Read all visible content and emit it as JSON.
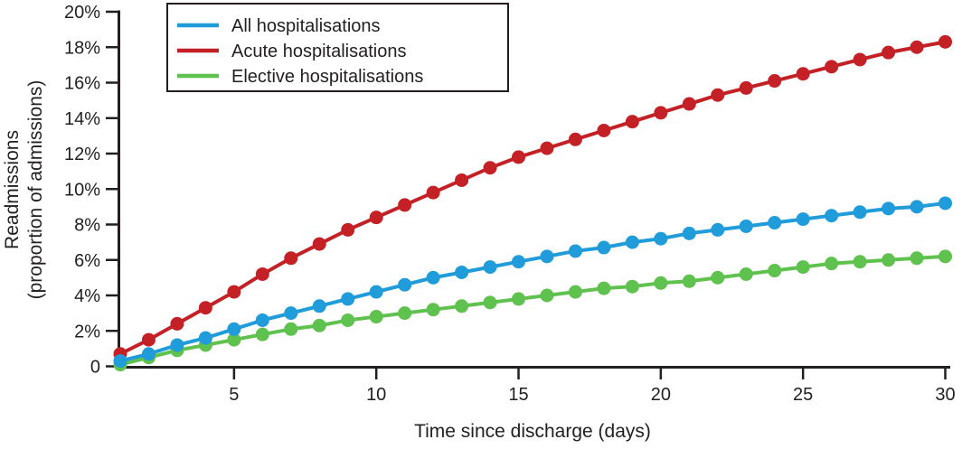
{
  "chart_data": {
    "type": "line",
    "marker": "circle",
    "grid": false,
    "legend_position": "top-left",
    "xlabel": "Time since discharge (days)",
    "ylabel": "Readmissions (proportion of admissions)",
    "y_axis_title_lines": [
      "Readmissions",
      "(proportion of admissions)"
    ],
    "xlim": [
      1,
      30
    ],
    "ylim": [
      0,
      20
    ],
    "x_ticks": [
      5,
      10,
      15,
      20,
      25,
      30
    ],
    "y_ticks": [
      {
        "value": 0,
        "label": "0"
      },
      {
        "value": 2,
        "label": "2%"
      },
      {
        "value": 4,
        "label": "4%"
      },
      {
        "value": 6,
        "label": "6%"
      },
      {
        "value": 8,
        "label": "8%"
      },
      {
        "value": 10,
        "label": "10%"
      },
      {
        "value": 12,
        "label": "12%"
      },
      {
        "value": 14,
        "label": "14%"
      },
      {
        "value": 16,
        "label": "16%"
      },
      {
        "value": 18,
        "label": "18%"
      },
      {
        "value": 20,
        "label": "20%"
      }
    ],
    "x": [
      1,
      2,
      3,
      4,
      5,
      6,
      7,
      8,
      9,
      10,
      11,
      12,
      13,
      14,
      15,
      16,
      17,
      18,
      19,
      20,
      21,
      22,
      23,
      24,
      25,
      26,
      27,
      28,
      29,
      30
    ],
    "series": [
      {
        "name": "All hospitalisations",
        "color": "#1f9cd9",
        "values": [
          0.3,
          0.7,
          1.2,
          1.6,
          2.1,
          2.6,
          3.0,
          3.4,
          3.8,
          4.2,
          4.6,
          5.0,
          5.3,
          5.6,
          5.9,
          6.2,
          6.5,
          6.7,
          7.0,
          7.2,
          7.5,
          7.7,
          7.9,
          8.1,
          8.3,
          8.5,
          8.7,
          8.9,
          9.0,
          9.2
        ]
      },
      {
        "name": "Acute hospitalisations",
        "color": "#c42127",
        "values": [
          0.7,
          1.5,
          2.4,
          3.3,
          4.2,
          5.2,
          6.1,
          6.9,
          7.7,
          8.4,
          9.1,
          9.8,
          10.5,
          11.2,
          11.8,
          12.3,
          12.8,
          13.3,
          13.8,
          14.3,
          14.8,
          15.3,
          15.7,
          16.1,
          16.5,
          16.9,
          17.3,
          17.7,
          18.0,
          18.3
        ]
      },
      {
        "name": "Elective hospitalisations",
        "color": "#5fc14e",
        "values": [
          0.1,
          0.5,
          0.9,
          1.2,
          1.5,
          1.8,
          2.1,
          2.3,
          2.6,
          2.8,
          3.0,
          3.2,
          3.4,
          3.6,
          3.8,
          4.0,
          4.2,
          4.4,
          4.5,
          4.7,
          4.8,
          5.0,
          5.2,
          5.4,
          5.6,
          5.8,
          5.9,
          6.0,
          6.1,
          6.2
        ]
      }
    ]
  }
}
